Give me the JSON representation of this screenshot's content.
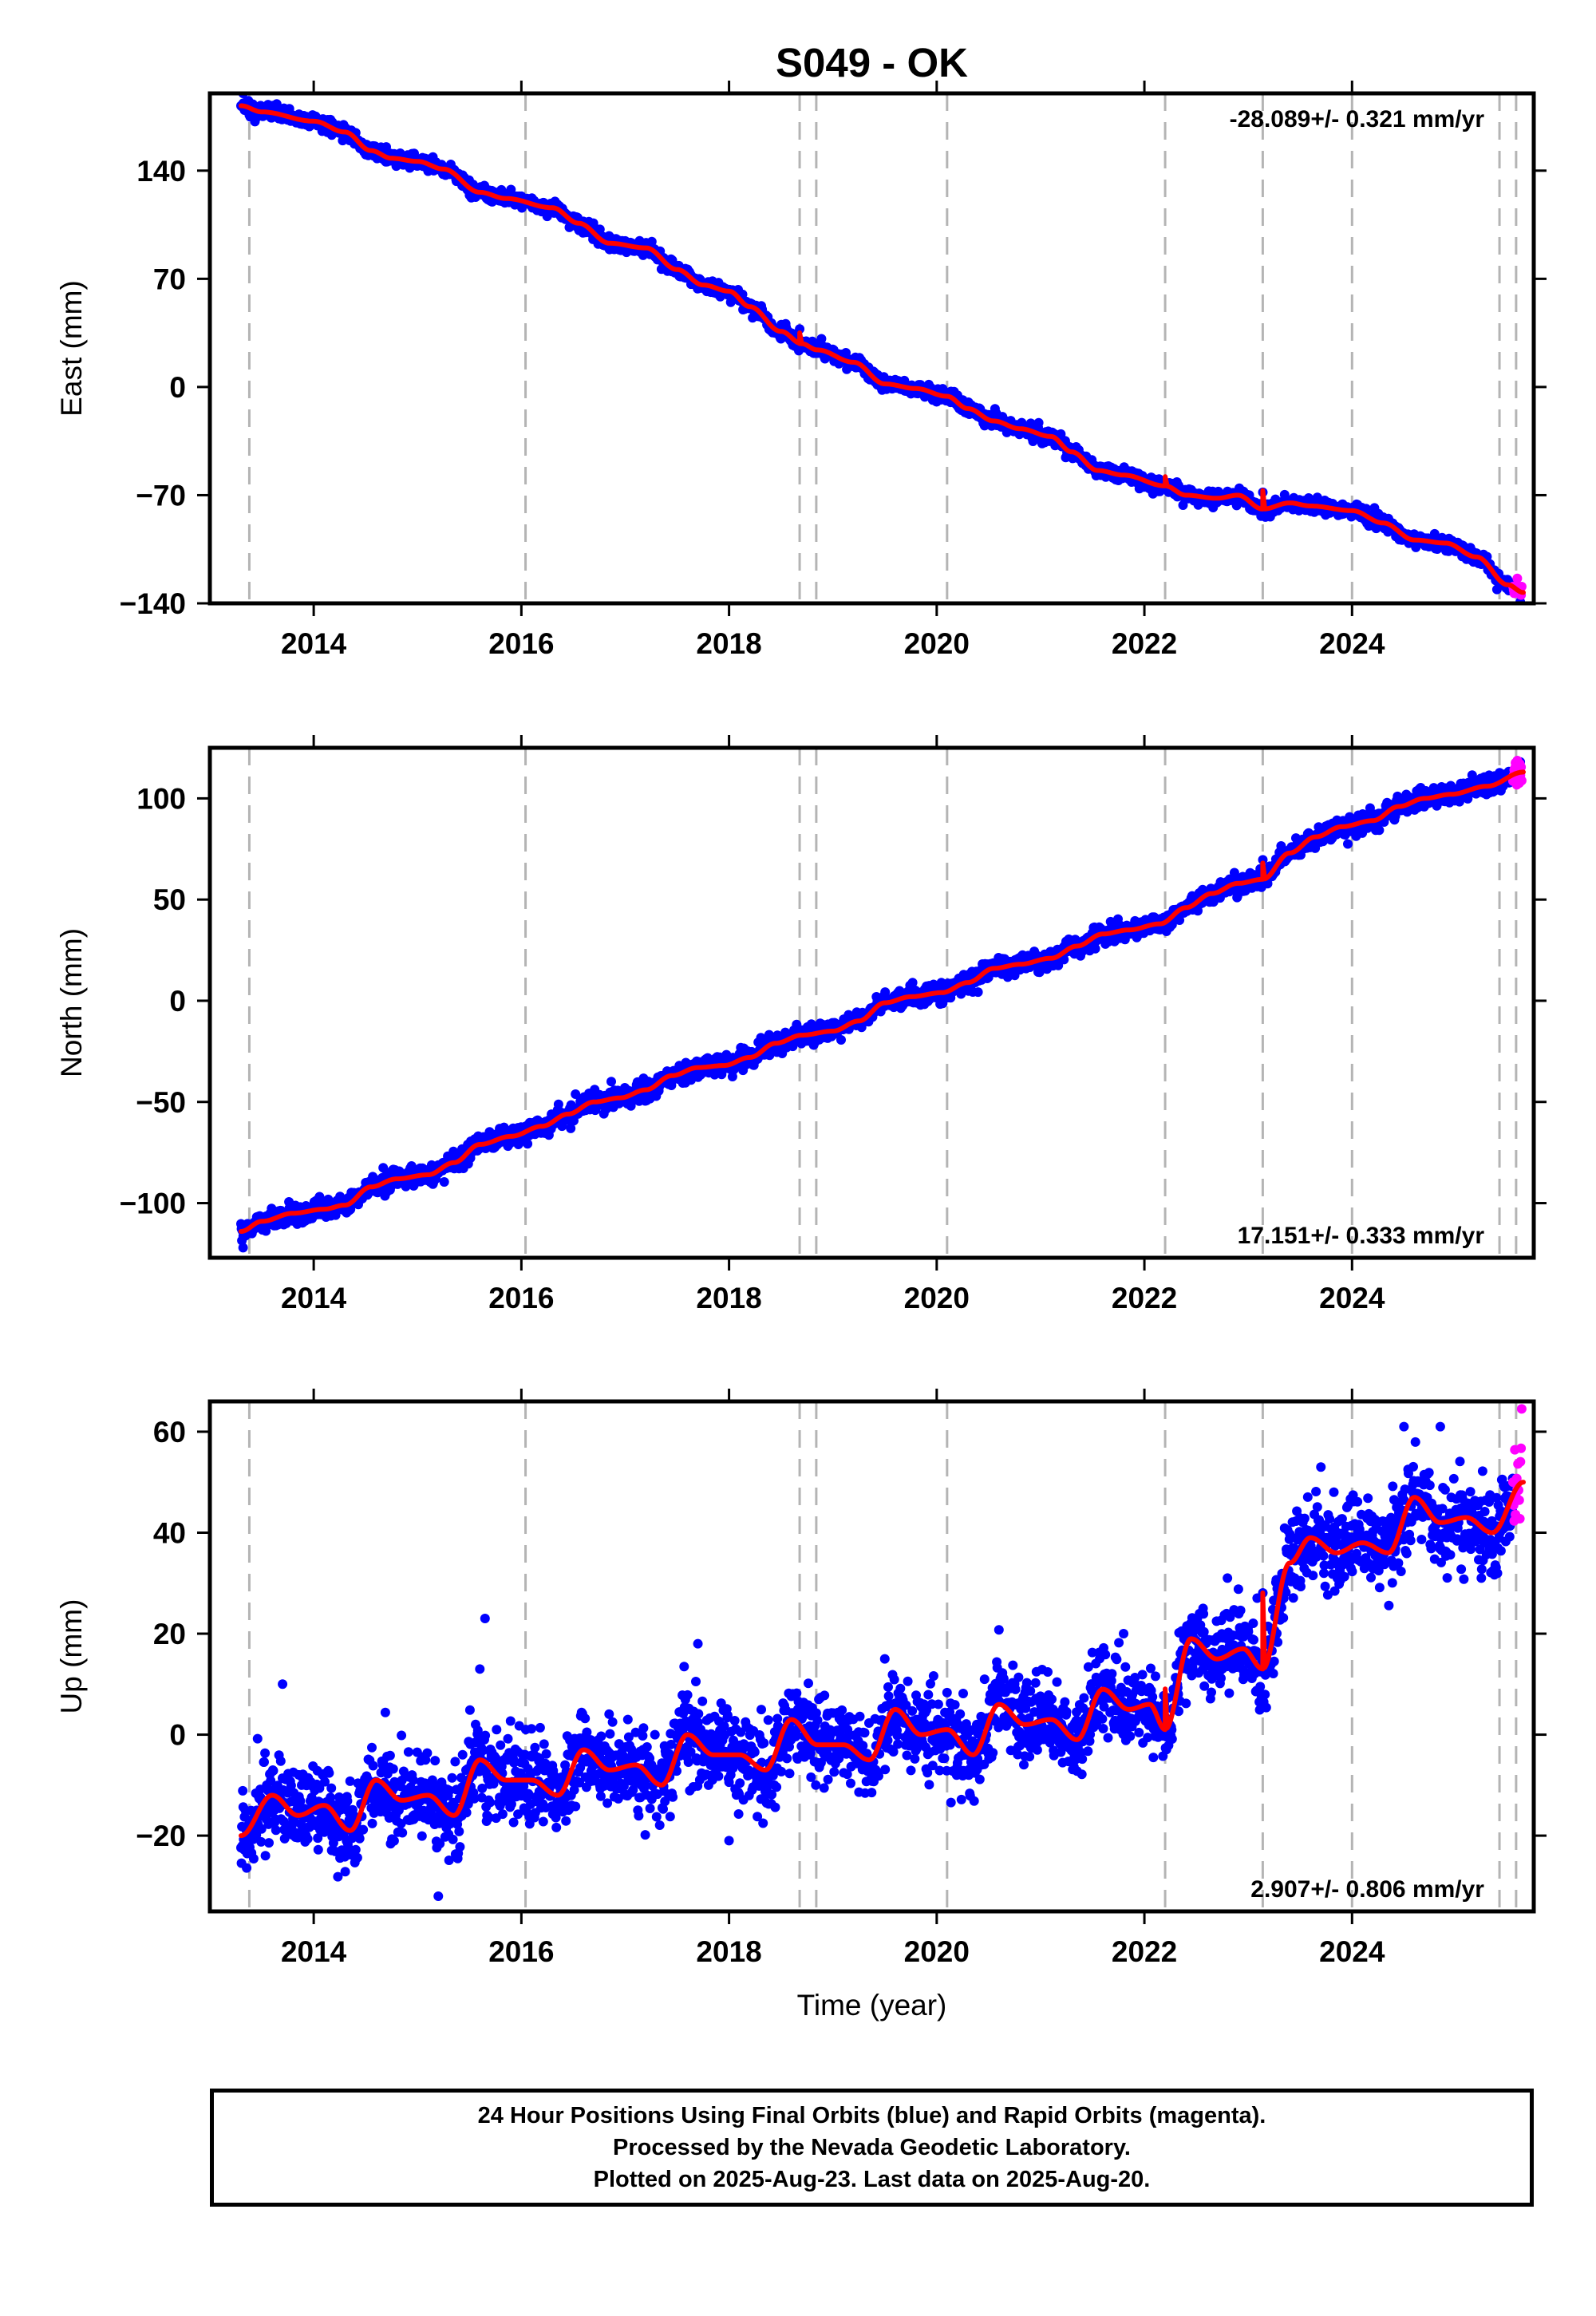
{
  "chart_data": [
    {
      "type": "scatter",
      "title": "S049 - OK",
      "ylabel": "East (mm)",
      "xlabel": "",
      "rate_label": "-28.089+/- 0.321 mm/yr",
      "rate_position": "top-right",
      "xlim": [
        2013.0,
        2025.75
      ],
      "ylim": [
        -140,
        190
      ],
      "xticks": [
        2014,
        2016,
        2018,
        2020,
        2022,
        2024
      ],
      "yticks": [
        -140,
        -70,
        0,
        70,
        140
      ],
      "ytick_labels": [
        "−140",
        "−70",
        "0",
        "70",
        "140"
      ],
      "grid": false,
      "event_lines": [
        2013.38,
        2016.04,
        2018.68,
        2018.84,
        2020.1,
        2022.2,
        2023.14,
        2024.0,
        2025.42,
        2025.58
      ],
      "noise_mm": 2.2,
      "model_trend": [
        [
          2013.3,
          182
        ],
        [
          2013.5,
          178
        ],
        [
          2014.0,
          172
        ],
        [
          2014.3,
          165
        ],
        [
          2014.55,
          153
        ],
        [
          2014.75,
          148
        ],
        [
          2015.0,
          146
        ],
        [
          2015.25,
          141
        ],
        [
          2015.6,
          126
        ],
        [
          2015.85,
          122
        ],
        [
          2016.3,
          116
        ],
        [
          2016.55,
          106
        ],
        [
          2016.85,
          93
        ],
        [
          2017.2,
          90
        ],
        [
          2017.5,
          76
        ],
        [
          2017.75,
          66
        ],
        [
          2018.0,
          62
        ],
        [
          2018.2,
          52
        ],
        [
          2018.5,
          36
        ],
        [
          2018.7,
          28
        ],
        [
          2018.85,
          24
        ],
        [
          2019.2,
          16
        ],
        [
          2019.5,
          2
        ],
        [
          2019.8,
          -1
        ],
        [
          2020.1,
          -6
        ],
        [
          2020.3,
          -14
        ],
        [
          2020.55,
          -22
        ],
        [
          2020.8,
          -27
        ],
        [
          2021.1,
          -32
        ],
        [
          2021.3,
          -42
        ],
        [
          2021.55,
          -54
        ],
        [
          2021.8,
          -57
        ],
        [
          2022.2,
          -64
        ],
        [
          2022.4,
          -70
        ],
        [
          2022.7,
          -72
        ],
        [
          2022.9,
          -70
        ],
        [
          2023.14,
          -79
        ],
        [
          2023.4,
          -75
        ],
        [
          2023.6,
          -77
        ],
        [
          2024.0,
          -80
        ],
        [
          2024.3,
          -88
        ],
        [
          2024.6,
          -99
        ],
        [
          2024.9,
          -101
        ],
        [
          2025.2,
          -110
        ],
        [
          2025.5,
          -128
        ],
        [
          2025.65,
          -133
        ]
      ],
      "model_offsets": [
        [
          2018.68,
          7
        ],
        [
          2022.2,
          6
        ],
        [
          2023.14,
          12
        ]
      ],
      "outliers": [
        {
          "x": 2016.65,
          "y": 107
        },
        {
          "x": 2013.32,
          "y": 190
        },
        {
          "x": 2025.62,
          "y": -139
        }
      ],
      "series": [
        {
          "name": "Final Orbits",
          "color": "#0000ff",
          "x_range": [
            2013.3,
            2025.55
          ]
        },
        {
          "name": "Rapid Orbits",
          "color": "#ff00ff",
          "x_range": [
            2025.55,
            2025.64
          ]
        }
      ],
      "model_color": "#ff0000"
    },
    {
      "type": "scatter",
      "ylabel": "North (mm)",
      "xlabel": "",
      "rate_label": "17.151+/- 0.333 mm/yr",
      "rate_position": "bottom-right",
      "xlim": [
        2013.0,
        2025.75
      ],
      "ylim": [
        -127,
        125
      ],
      "xticks": [
        2014,
        2016,
        2018,
        2020,
        2022,
        2024
      ],
      "yticks": [
        -100,
        -50,
        0,
        50,
        100
      ],
      "ytick_labels": [
        "−100",
        "−50",
        "0",
        "50",
        "100"
      ],
      "grid": false,
      "event_lines": [
        2013.38,
        2016.04,
        2018.68,
        2018.84,
        2020.1,
        2022.2,
        2023.14,
        2024.0,
        2025.42,
        2025.58
      ],
      "noise_mm": 2.3,
      "model_trend": [
        [
          2013.3,
          -114
        ],
        [
          2013.5,
          -109
        ],
        [
          2013.8,
          -105
        ],
        [
          2014.1,
          -103
        ],
        [
          2014.3,
          -101
        ],
        [
          2014.55,
          -92
        ],
        [
          2014.8,
          -88
        ],
        [
          2015.1,
          -86
        ],
        [
          2015.35,
          -80
        ],
        [
          2015.6,
          -71
        ],
        [
          2015.9,
          -67
        ],
        [
          2016.2,
          -62
        ],
        [
          2016.45,
          -56
        ],
        [
          2016.7,
          -50
        ],
        [
          2016.95,
          -48
        ],
        [
          2017.2,
          -44
        ],
        [
          2017.45,
          -37
        ],
        [
          2017.7,
          -33
        ],
        [
          2017.95,
          -32
        ],
        [
          2018.2,
          -28
        ],
        [
          2018.45,
          -21
        ],
        [
          2018.7,
          -17
        ],
        [
          2019.0,
          -15
        ],
        [
          2019.25,
          -10
        ],
        [
          2019.5,
          -1
        ],
        [
          2019.75,
          2
        ],
        [
          2020.05,
          4
        ],
        [
          2020.3,
          9
        ],
        [
          2020.55,
          16
        ],
        [
          2020.8,
          18
        ],
        [
          2021.1,
          21
        ],
        [
          2021.35,
          27
        ],
        [
          2021.6,
          33
        ],
        [
          2021.85,
          35
        ],
        [
          2022.15,
          38
        ],
        [
          2022.4,
          46
        ],
        [
          2022.65,
          53
        ],
        [
          2022.9,
          58
        ],
        [
          2023.14,
          60
        ],
        [
          2023.4,
          73
        ],
        [
          2023.65,
          81
        ],
        [
          2023.9,
          86
        ],
        [
          2024.2,
          89
        ],
        [
          2024.45,
          96
        ],
        [
          2024.7,
          100
        ],
        [
          2024.95,
          102
        ],
        [
          2025.3,
          106
        ],
        [
          2025.65,
          113
        ]
      ],
      "model_offsets": [
        [
          2023.14,
          8
        ]
      ],
      "outliers": [
        {
          "x": 2013.32,
          "y": -122
        },
        {
          "x": 2025.28,
          "y": 104
        },
        {
          "x": 2025.62,
          "y": 118
        }
      ],
      "series": [
        {
          "name": "Final Orbits",
          "color": "#0000ff",
          "x_range": [
            2013.3,
            2025.55
          ]
        },
        {
          "name": "Rapid Orbits",
          "color": "#ff00ff",
          "x_range": [
            2025.55,
            2025.64
          ]
        }
      ],
      "model_color": "#ff0000"
    },
    {
      "type": "scatter",
      "ylabel": "Up (mm)",
      "xlabel": "Time (year)",
      "rate_label": "2.907+/- 0.806 mm/yr",
      "rate_position": "bottom-right",
      "xlim": [
        2013.0,
        2025.75
      ],
      "ylim": [
        -35,
        66
      ],
      "xticks": [
        2014,
        2016,
        2018,
        2020,
        2022,
        2024
      ],
      "yticks": [
        -20,
        0,
        20,
        40,
        60
      ],
      "ytick_labels": [
        "−20",
        "0",
        "20",
        "40",
        "60"
      ],
      "grid": false,
      "event_lines": [
        2013.38,
        2016.04,
        2018.68,
        2018.84,
        2020.1,
        2022.2,
        2023.14,
        2024.0,
        2025.42,
        2025.58
      ],
      "noise_mm": 4.2,
      "model_trend": [
        [
          2013.3,
          -20
        ],
        [
          2013.6,
          -12
        ],
        [
          2013.85,
          -16
        ],
        [
          2014.1,
          -14
        ],
        [
          2014.35,
          -19
        ],
        [
          2014.6,
          -9
        ],
        [
          2014.85,
          -13
        ],
        [
          2015.1,
          -12
        ],
        [
          2015.35,
          -16
        ],
        [
          2015.6,
          -5
        ],
        [
          2015.85,
          -9
        ],
        [
          2016.1,
          -9
        ],
        [
          2016.35,
          -12
        ],
        [
          2016.6,
          -3
        ],
        [
          2016.85,
          -7
        ],
        [
          2017.1,
          -6
        ],
        [
          2017.35,
          -10
        ],
        [
          2017.6,
          0
        ],
        [
          2017.85,
          -4
        ],
        [
          2018.1,
          -4
        ],
        [
          2018.35,
          -7
        ],
        [
          2018.6,
          3
        ],
        [
          2018.85,
          -2
        ],
        [
          2019.1,
          -2
        ],
        [
          2019.35,
          -5
        ],
        [
          2019.6,
          5
        ],
        [
          2019.85,
          0
        ],
        [
          2020.1,
          1
        ],
        [
          2020.35,
          -4
        ],
        [
          2020.6,
          6
        ],
        [
          2020.85,
          2
        ],
        [
          2021.1,
          3
        ],
        [
          2021.35,
          -1
        ],
        [
          2021.6,
          9
        ],
        [
          2021.85,
          5
        ],
        [
          2022.05,
          6
        ],
        [
          2022.2,
          1
        ],
        [
          2022.45,
          19
        ],
        [
          2022.7,
          15
        ],
        [
          2022.95,
          17
        ],
        [
          2023.14,
          13
        ],
        [
          2023.4,
          34
        ],
        [
          2023.6,
          39
        ],
        [
          2023.85,
          36
        ],
        [
          2024.1,
          38
        ],
        [
          2024.35,
          36
        ],
        [
          2024.6,
          47
        ],
        [
          2024.85,
          42
        ],
        [
          2025.1,
          43
        ],
        [
          2025.35,
          40
        ],
        [
          2025.65,
          50
        ]
      ],
      "model_offsets": [
        [
          2022.2,
          8
        ],
        [
          2023.14,
          15
        ]
      ],
      "outliers": [
        {
          "x": 2015.65,
          "y": 23
        },
        {
          "x": 2015.6,
          "y": 13
        },
        {
          "x": 2015.2,
          "y": -32
        },
        {
          "x": 2013.7,
          "y": 10
        },
        {
          "x": 2017.7,
          "y": 18
        },
        {
          "x": 2018.0,
          "y": -21
        },
        {
          "x": 2019.5,
          "y": 15
        },
        {
          "x": 2024.5,
          "y": 61
        },
        {
          "x": 2024.85,
          "y": 61
        },
        {
          "x": 2023.7,
          "y": 53
        },
        {
          "x": 2022.8,
          "y": 31
        },
        {
          "x": 2021.8,
          "y": 20
        }
      ],
      "series": [
        {
          "name": "Final Orbits",
          "color": "#0000ff",
          "x_range": [
            2013.3,
            2025.55
          ]
        },
        {
          "name": "Rapid Orbits",
          "color": "#ff00ff",
          "x_range": [
            2025.55,
            2025.64
          ]
        }
      ],
      "model_color": "#ff0000"
    }
  ],
  "footer": {
    "line1": "24 Hour Positions Using Final Orbits (blue) and Rapid Orbits (magenta).",
    "line2": "Processed by the Nevada Geodetic Laboratory.",
    "line3": "Plotted on 2025-Aug-23. Last data on 2025-Aug-20."
  }
}
